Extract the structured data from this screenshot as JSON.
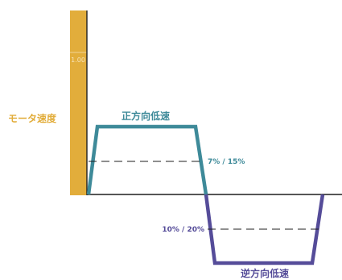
{
  "title": "",
  "axis": {
    "ylabel": "モータ速度",
    "bar_tick": "1.00"
  },
  "segments": {
    "forward_label": "正方向低速",
    "reverse_label": "逆方向低速"
  },
  "thresholds": {
    "forward_label": "7% / 15%",
    "reverse_label": "10% / 20%"
  },
  "colors": {
    "bar": "#e2ad3b",
    "axis": "#1f1f1f",
    "forward": "#3e8a99",
    "reverse": "#554c99",
    "forward_text": "#3e8a99",
    "reverse_text": "#554c99",
    "dashed": "#1f1f1f",
    "background": "#ffffff"
  }
}
